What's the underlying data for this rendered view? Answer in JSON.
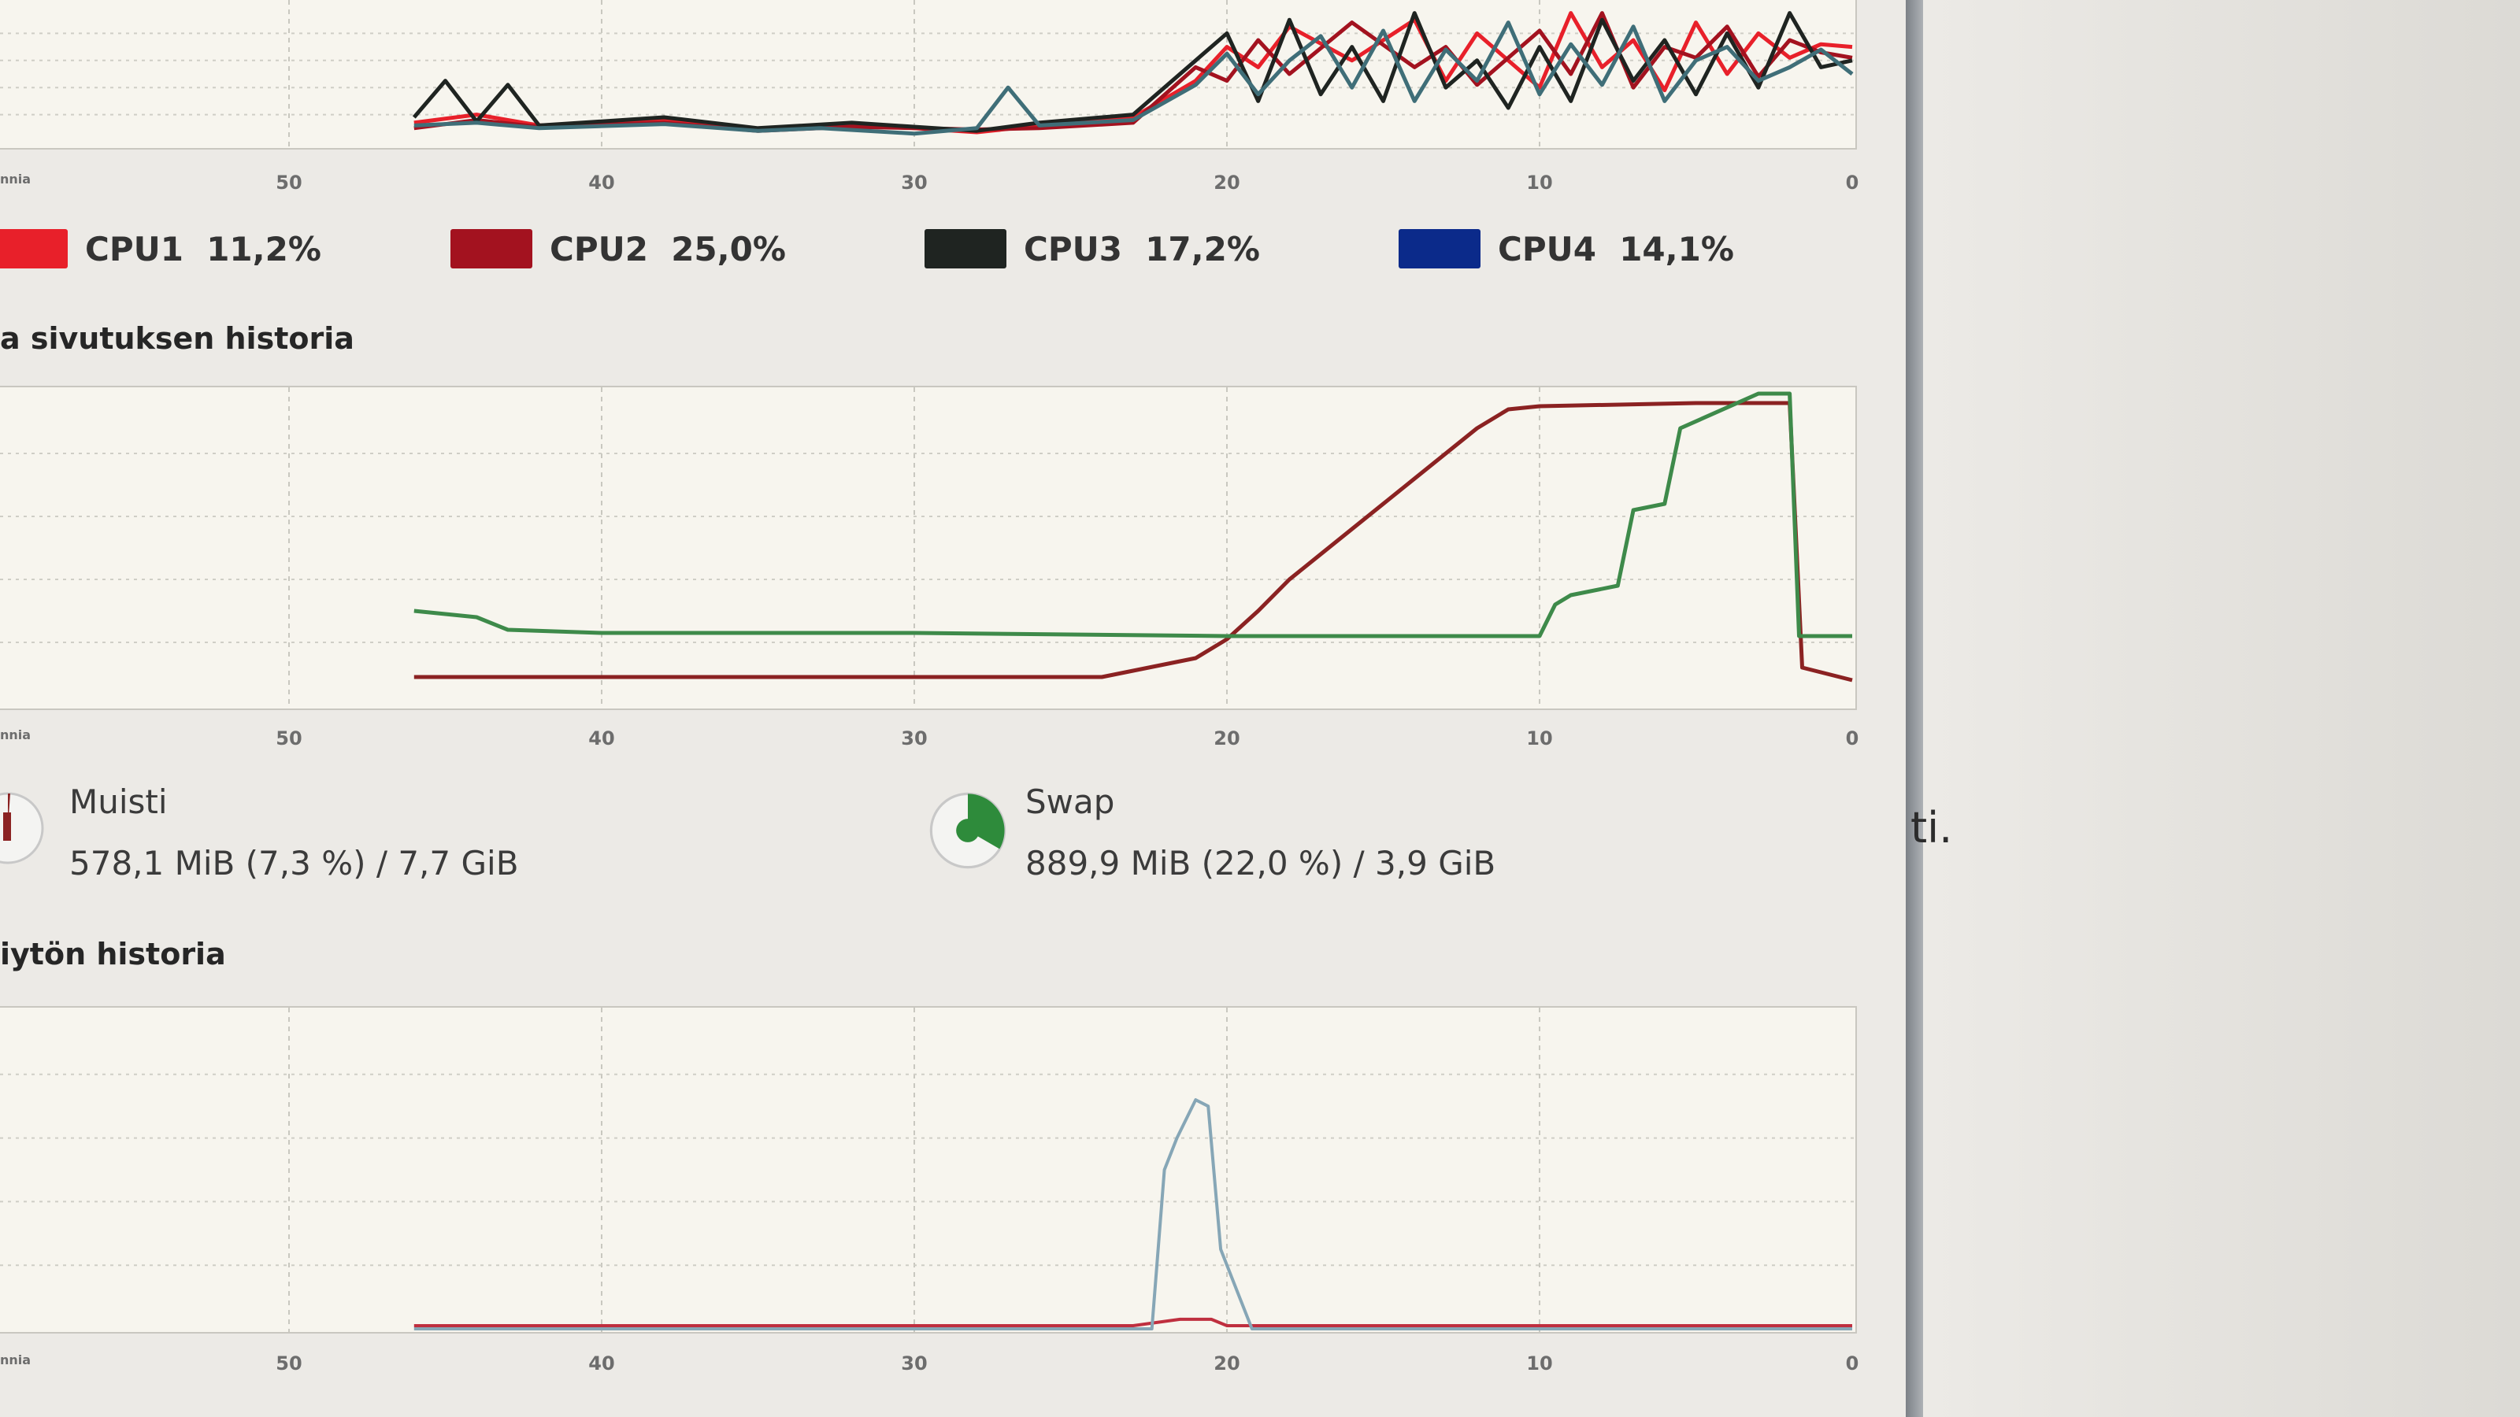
{
  "cpu_legend": [
    {
      "label": "CPU1",
      "value": "11,2%",
      "color": "#e8202a"
    },
    {
      "label": "CPU2",
      "value": "25,0%",
      "color": "#a3121f"
    },
    {
      "label": "CPU3",
      "value": "17,2%",
      "color": "#1f2421"
    },
    {
      "label": "CPU4",
      "value": "14,1%",
      "color": "#0b2a8a"
    }
  ],
  "sections": {
    "memory_history_title": "a sivutuksen historia",
    "network_history_title": "iytön historia"
  },
  "memory": {
    "label": "Muisti",
    "value": "578,1 MiB (7,3 %) / 7,7 GiB",
    "color": "#8b2222"
  },
  "swap": {
    "label": "Swap",
    "value": "889,9 MiB (22,0 %) / 3,9 GiB",
    "color": "#2e8b3b"
  },
  "x_axis_ticks": [
    "nnia",
    "50",
    "40",
    "30",
    "20",
    "10",
    "0"
  ],
  "outside_text": "ti.",
  "chart_data": [
    {
      "type": "line",
      "x_reversed": true,
      "xlim": [
        60,
        0
      ],
      "ylim": [
        0,
        100
      ],
      "series": [
        {
          "name": "CPU1",
          "color": "#e8202a",
          "points": [
            [
              46,
              14
            ],
            [
              44,
              20
            ],
            [
              42,
              12
            ],
            [
              38,
              16
            ],
            [
              35,
              9
            ],
            [
              32,
              13
            ],
            [
              28,
              7
            ],
            [
              26,
              12
            ],
            [
              23,
              18
            ],
            [
              21,
              45
            ],
            [
              20,
              70
            ],
            [
              19,
              55
            ],
            [
              18,
              85
            ],
            [
              16,
              60
            ],
            [
              14,
              90
            ],
            [
              13,
              45
            ],
            [
              12,
              80
            ],
            [
              10,
              40
            ],
            [
              9,
              95
            ],
            [
              8,
              55
            ],
            [
              7,
              75
            ],
            [
              6,
              38
            ],
            [
              5,
              88
            ],
            [
              4,
              50
            ],
            [
              3,
              80
            ],
            [
              2,
              62
            ],
            [
              1,
              72
            ],
            [
              0,
              70
            ]
          ]
        },
        {
          "name": "CPU2",
          "color": "#a3121f",
          "points": [
            [
              46,
              10
            ],
            [
              44,
              16
            ],
            [
              42,
              11
            ],
            [
              38,
              14
            ],
            [
              35,
              8
            ],
            [
              32,
              11
            ],
            [
              28,
              9
            ],
            [
              26,
              10
            ],
            [
              23,
              14
            ],
            [
              21,
              55
            ],
            [
              20,
              45
            ],
            [
              19,
              75
            ],
            [
              18,
              50
            ],
            [
              16,
              88
            ],
            [
              14,
              55
            ],
            [
              13,
              70
            ],
            [
              12,
              42
            ],
            [
              10,
              82
            ],
            [
              9,
              50
            ],
            [
              8,
              95
            ],
            [
              7,
              40
            ],
            [
              6,
              70
            ],
            [
              5,
              62
            ],
            [
              4,
              85
            ],
            [
              3,
              48
            ],
            [
              2,
              75
            ],
            [
              1,
              66
            ],
            [
              0,
              62
            ]
          ]
        },
        {
          "name": "CPU3",
          "color": "#1f2421",
          "points": [
            [
              46,
              18
            ],
            [
              45,
              45
            ],
            [
              44,
              15
            ],
            [
              43,
              42
            ],
            [
              42,
              12
            ],
            [
              38,
              18
            ],
            [
              35,
              10
            ],
            [
              32,
              14
            ],
            [
              28,
              8
            ],
            [
              26,
              14
            ],
            [
              23,
              20
            ],
            [
              21,
              60
            ],
            [
              20,
              80
            ],
            [
              19,
              30
            ],
            [
              18,
              90
            ],
            [
              17,
              35
            ],
            [
              16,
              70
            ],
            [
              15,
              30
            ],
            [
              14,
              95
            ],
            [
              13,
              40
            ],
            [
              12,
              60
            ],
            [
              11,
              25
            ],
            [
              10,
              70
            ],
            [
              9,
              30
            ],
            [
              8,
              90
            ],
            [
              7,
              45
            ],
            [
              6,
              75
            ],
            [
              5,
              35
            ],
            [
              4,
              80
            ],
            [
              3,
              40
            ],
            [
              2,
              95
            ],
            [
              1,
              55
            ],
            [
              0,
              60
            ]
          ]
        },
        {
          "name": "CPU4",
          "color": "#3f6e78",
          "points": [
            [
              46,
              12
            ],
            [
              44,
              14
            ],
            [
              42,
              10
            ],
            [
              38,
              13
            ],
            [
              35,
              8
            ],
            [
              33,
              10
            ],
            [
              30,
              6
            ],
            [
              28,
              10
            ],
            [
              27,
              40
            ],
            [
              26,
              12
            ],
            [
              23,
              16
            ],
            [
              21,
              42
            ],
            [
              20,
              65
            ],
            [
              19,
              35
            ],
            [
              18,
              60
            ],
            [
              17,
              78
            ],
            [
              16,
              40
            ],
            [
              15,
              82
            ],
            [
              14,
              30
            ],
            [
              13,
              68
            ],
            [
              12,
              45
            ],
            [
              11,
              88
            ],
            [
              10,
              35
            ],
            [
              9,
              72
            ],
            [
              8,
              42
            ],
            [
              7,
              85
            ],
            [
              6,
              30
            ],
            [
              5,
              60
            ],
            [
              4,
              70
            ],
            [
              3,
              45
            ],
            [
              2,
              55
            ],
            [
              1,
              68
            ],
            [
              0,
              50
            ]
          ]
        }
      ]
    },
    {
      "type": "line",
      "x_reversed": true,
      "xlim": [
        60,
        0
      ],
      "ylim": [
        0,
        100
      ],
      "series": [
        {
          "name": "Muisti",
          "color": "#8b2222",
          "points": [
            [
              46,
              9
            ],
            [
              40,
              9
            ],
            [
              30,
              9
            ],
            [
              24,
              9
            ],
            [
              21,
              15
            ],
            [
              20,
              21
            ],
            [
              19,
              30
            ],
            [
              18,
              40
            ],
            [
              17,
              48
            ],
            [
              16,
              56
            ],
            [
              15,
              64
            ],
            [
              14,
              72
            ],
            [
              13,
              80
            ],
            [
              12,
              88
            ],
            [
              11,
              94
            ],
            [
              10,
              95
            ],
            [
              5,
              96
            ],
            [
              2,
              96
            ],
            [
              1.6,
              12
            ],
            [
              0,
              8
            ]
          ]
        },
        {
          "name": "Swap",
          "color": "#3e8a4a",
          "points": [
            [
              46,
              30
            ],
            [
              44,
              28
            ],
            [
              43,
              24
            ],
            [
              40,
              23
            ],
            [
              30,
              23
            ],
            [
              20,
              22
            ],
            [
              10,
              22
            ],
            [
              9.5,
              32
            ],
            [
              9,
              35
            ],
            [
              7.5,
              38
            ],
            [
              7,
              62
            ],
            [
              6,
              64
            ],
            [
              5.5,
              88
            ],
            [
              3,
              99
            ],
            [
              2,
              99
            ],
            [
              1.7,
              22
            ],
            [
              0,
              22
            ]
          ]
        }
      ]
    },
    {
      "type": "line",
      "x_reversed": true,
      "xlim": [
        60,
        0
      ],
      "ylim": [
        0,
        100
      ],
      "series": [
        {
          "name": "",
          "color": "#bf2f3f",
          "points": [
            [
              46,
              1
            ],
            [
              40,
              1
            ],
            [
              30,
              1
            ],
            [
              23,
              1
            ],
            [
              21.5,
              3
            ],
            [
              20.5,
              3
            ],
            [
              20,
              1
            ],
            [
              10,
              1
            ],
            [
              0,
              1
            ]
          ]
        },
        {
          "name": "",
          "color": "#86a6b6",
          "points": [
            [
              46,
              0
            ],
            [
              30,
              0
            ],
            [
              22.4,
              0
            ],
            [
              22,
              50
            ],
            [
              21.6,
              60
            ],
            [
              21,
              72
            ],
            [
              20.6,
              70
            ],
            [
              20.2,
              25
            ],
            [
              19.6,
              10
            ],
            [
              19.2,
              0
            ],
            [
              10,
              0
            ],
            [
              0,
              0
            ]
          ]
        }
      ]
    }
  ]
}
